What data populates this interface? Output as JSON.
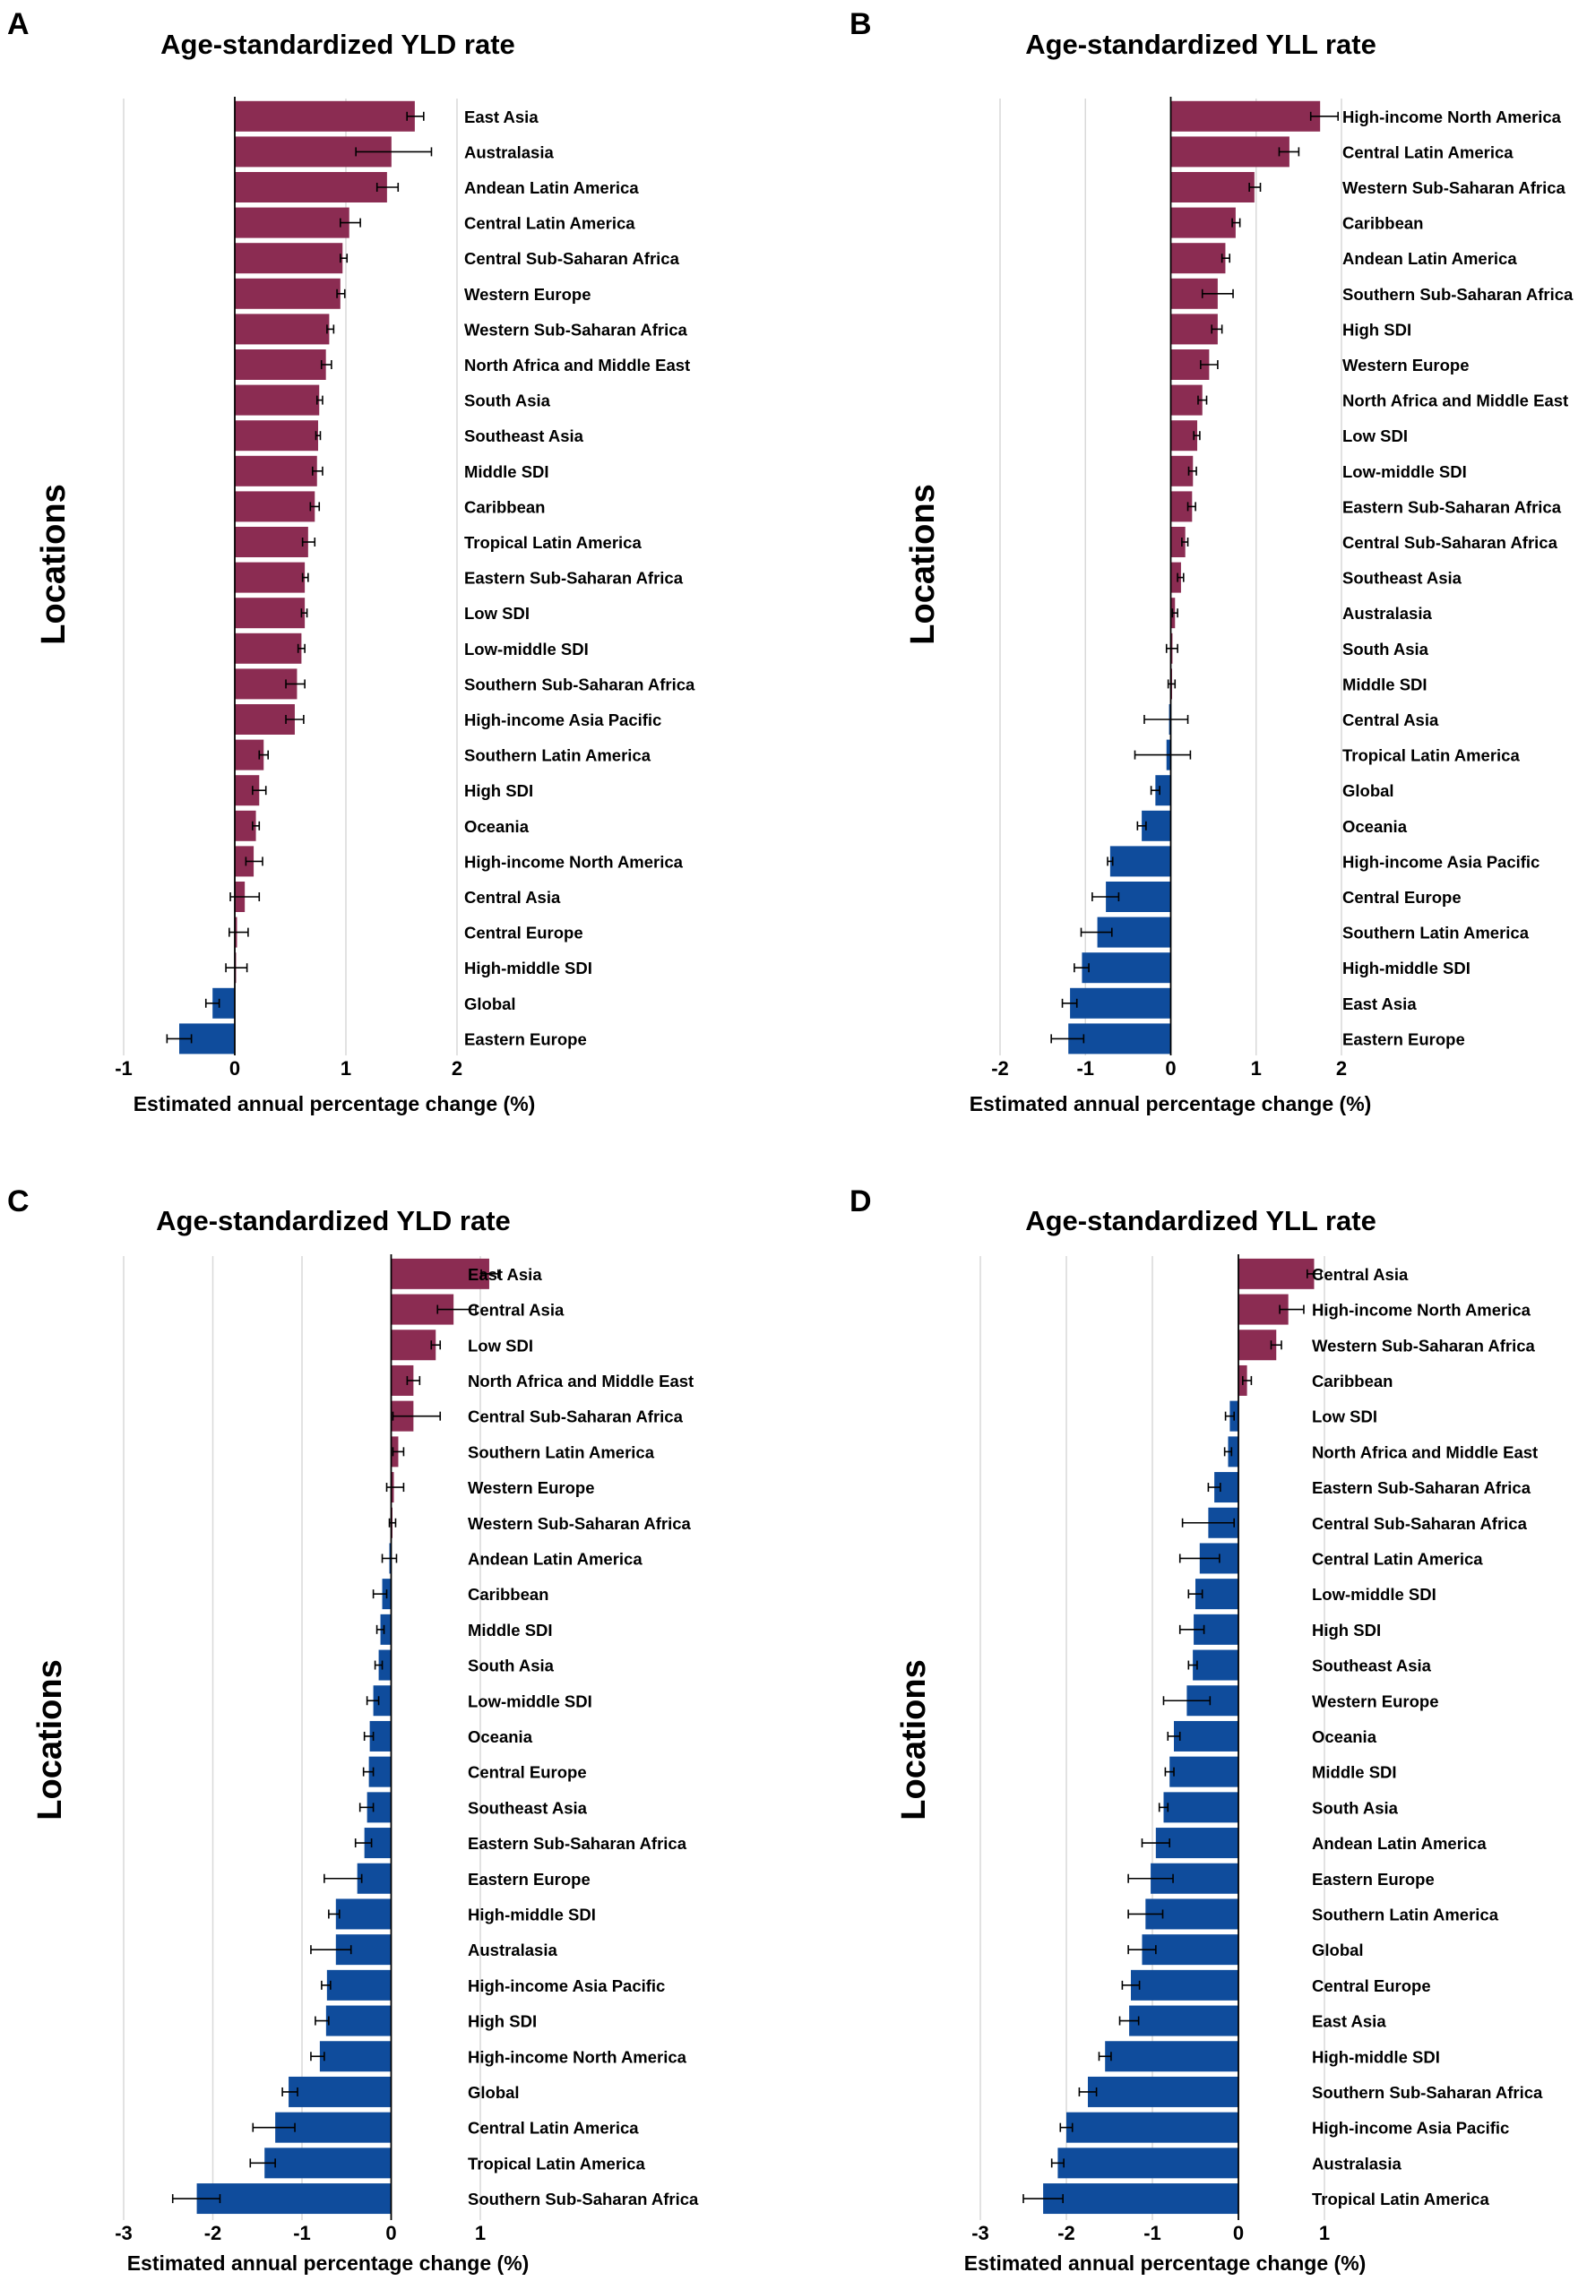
{
  "chart_data": [
    {
      "panel": "A",
      "type": "bar",
      "orientation": "horizontal",
      "title": "Age-standardized YLD rate",
      "xlabel": "Estimated annual percentage change (%)",
      "ylabel": "Locations",
      "xlim": [
        -1,
        2
      ],
      "xticks": [
        "-1",
        "0",
        "1",
        "2"
      ],
      "colors": {
        "positive": "#8b2c52",
        "negative": "#0f4c9c"
      },
      "categories": [
        "East Asia",
        "Australasia",
        "Andean Latin America",
        "Central Latin America",
        "Central Sub-Saharan Africa",
        "Western Europe",
        "Western Sub-Saharan Africa",
        "North Africa and Middle East",
        "South Asia",
        "Southeast Asia",
        "Middle SDI",
        "Caribbean",
        "Tropical Latin America",
        "Eastern Sub-Saharan Africa",
        "Low SDI",
        "Low-middle SDI",
        "Southern Sub-Saharan Africa",
        "High-income Asia Pacific",
        "Southern Latin America",
        "High SDI",
        "Oceania",
        "High-income North America",
        "Central Asia",
        "Central Europe",
        "High-middle SDI",
        "Global",
        "Eastern Europe"
      ],
      "values": [
        1.62,
        1.41,
        1.37,
        1.03,
        0.97,
        0.95,
        0.85,
        0.82,
        0.76,
        0.75,
        0.74,
        0.72,
        0.66,
        0.63,
        0.63,
        0.6,
        0.56,
        0.54,
        0.26,
        0.22,
        0.19,
        0.17,
        0.09,
        0.02,
        0.01,
        -0.2,
        -0.5
      ],
      "ci_low": [
        1.55,
        1.09,
        1.28,
        0.95,
        0.95,
        0.92,
        0.83,
        0.78,
        0.74,
        0.73,
        0.7,
        0.68,
        0.61,
        0.61,
        0.6,
        0.57,
        0.46,
        0.46,
        0.22,
        0.16,
        0.16,
        0.1,
        -0.04,
        -0.05,
        -0.08,
        -0.26,
        -0.61
      ],
      "ci_high": [
        1.7,
        1.77,
        1.47,
        1.13,
        1.01,
        0.99,
        0.89,
        0.87,
        0.79,
        0.77,
        0.79,
        0.76,
        0.72,
        0.66,
        0.65,
        0.63,
        0.63,
        0.62,
        0.3,
        0.28,
        0.22,
        0.25,
        0.22,
        0.12,
        0.11,
        -0.14,
        -0.39
      ]
    },
    {
      "panel": "B",
      "type": "bar",
      "orientation": "horizontal",
      "title": "Age-standardized YLL rate",
      "xlabel": "Estimated annual percentage change (%)",
      "ylabel": "Locations",
      "xlim": [
        -2,
        2
      ],
      "xticks": [
        "-2",
        "-1",
        "0",
        "1",
        "2"
      ],
      "colors": {
        "positive": "#8b2c52",
        "negative": "#0f4c9c"
      },
      "categories": [
        "High-income North America",
        "Central Latin America",
        "Western Sub-Saharan Africa",
        "Caribbean",
        "Andean Latin America",
        "Southern Sub-Saharan Africa",
        "High SDI",
        "Western Europe",
        "North Africa and Middle East",
        "Low SDI",
        "Low-middle SDI",
        "Eastern Sub-Saharan Africa",
        "Central Sub-Saharan Africa",
        "Southeast Asia",
        "Australasia",
        "South Asia",
        "Middle SDI",
        "Central Asia",
        "Tropical Latin America",
        "Global",
        "Oceania",
        "High-income Asia Pacific",
        "Central Europe",
        "Southern Latin America",
        "High-middle SDI",
        "East Asia",
        "Eastern Europe"
      ],
      "values": [
        1.75,
        1.39,
        0.98,
        0.76,
        0.64,
        0.55,
        0.55,
        0.45,
        0.37,
        0.31,
        0.26,
        0.25,
        0.17,
        0.12,
        0.05,
        0.02,
        0.01,
        -0.02,
        -0.05,
        -0.18,
        -0.34,
        -0.71,
        -0.76,
        -0.86,
        -1.04,
        -1.18,
        -1.2
      ],
      "ci_low": [
        1.64,
        1.27,
        0.92,
        0.72,
        0.6,
        0.37,
        0.48,
        0.35,
        0.32,
        0.27,
        0.21,
        0.2,
        0.13,
        0.08,
        0.02,
        -0.05,
        -0.03,
        -0.31,
        -0.42,
        -0.23,
        -0.39,
        -0.74,
        -0.92,
        -1.05,
        -1.13,
        -1.27,
        -1.4
      ],
      "ci_high": [
        1.96,
        1.5,
        1.05,
        0.81,
        0.69,
        0.73,
        0.6,
        0.55,
        0.42,
        0.34,
        0.3,
        0.29,
        0.2,
        0.15,
        0.08,
        0.08,
        0.05,
        0.2,
        0.23,
        -0.13,
        -0.29,
        -0.68,
        -0.61,
        -0.69,
        -0.96,
        -1.1,
        -1.02
      ]
    },
    {
      "panel": "C",
      "type": "bar",
      "orientation": "horizontal",
      "title": "Age-standardized YLD rate",
      "xlabel": "Estimated annual percentage change (%)",
      "ylabel": "Locations",
      "xlim": [
        -3,
        1
      ],
      "xticks": [
        "-3",
        "-2",
        "-1",
        "0",
        "1"
      ],
      "colors": {
        "positive": "#8b2c52",
        "negative": "#0f4c9c"
      },
      "categories": [
        "East Asia",
        "Central Asia",
        "Low SDI",
        "North Africa and Middle East",
        "Central Sub-Saharan Africa",
        "Southern Latin America",
        "Western Europe",
        "Western Sub-Saharan Africa",
        "Andean Latin America",
        "Caribbean",
        "Middle SDI",
        "South Asia",
        "Low-middle SDI",
        "Oceania",
        "Central Europe",
        "Southeast Asia",
        "Eastern Sub-Saharan Africa",
        "Eastern Europe",
        "High-middle SDI",
        "Australasia",
        "High-income Asia Pacific",
        "High SDI",
        "High-income North America",
        "Global",
        "Central Latin America",
        "Tropical Latin America",
        "Southern Sub-Saharan Africa"
      ],
      "values": [
        1.1,
        0.7,
        0.5,
        0.25,
        0.25,
        0.08,
        0.03,
        0.01,
        -0.02,
        -0.1,
        -0.12,
        -0.14,
        -0.2,
        -0.24,
        -0.25,
        -0.27,
        -0.3,
        -0.38,
        -0.62,
        -0.62,
        -0.72,
        -0.73,
        -0.8,
        -1.15,
        -1.3,
        -1.42,
        -2.18
      ],
      "ci_low": [
        1.01,
        0.52,
        0.45,
        0.18,
        0.02,
        0.02,
        -0.05,
        -0.02,
        -0.1,
        -0.2,
        -0.16,
        -0.18,
        -0.27,
        -0.3,
        -0.31,
        -0.35,
        -0.4,
        -0.75,
        -0.7,
        -0.9,
        -0.78,
        -0.85,
        -0.9,
        -1.22,
        -1.55,
        -1.58,
        -2.45
      ],
      "ci_high": [
        1.2,
        0.95,
        0.55,
        0.32,
        0.55,
        0.14,
        0.14,
        0.05,
        0.06,
        -0.05,
        -0.08,
        -0.1,
        -0.14,
        -0.2,
        -0.2,
        -0.2,
        -0.22,
        -0.33,
        -0.58,
        -0.45,
        -0.68,
        -0.7,
        -0.75,
        -1.05,
        -1.08,
        -1.3,
        -1.92
      ]
    },
    {
      "panel": "D",
      "type": "bar",
      "orientation": "horizontal",
      "title": "Age-standardized YLL rate",
      "xlabel": "Estimated annual percentage change (%)",
      "ylabel": "Locations",
      "xlim": [
        -3,
        1
      ],
      "xticks": [
        "-3",
        "-2",
        "-1",
        "0",
        "1"
      ],
      "colors": {
        "positive": "#8b2c52",
        "negative": "#0f4c9c"
      },
      "categories": [
        "Central Asia",
        "High-income North America",
        "Western Sub-Saharan Africa",
        "Caribbean",
        "Low SDI",
        "North Africa and Middle East",
        "Eastern Sub-Saharan Africa",
        "Central Sub-Saharan Africa",
        "Central Latin America",
        "Low-middle SDI",
        "High SDI",
        "Southeast Asia",
        "Western Europe",
        "Oceania",
        "Middle SDI",
        "South Asia",
        "Andean Latin America",
        "Eastern Europe",
        "Southern Latin America",
        "Global",
        "Central Europe",
        "East Asia",
        "High-middle SDI",
        "Southern Sub-Saharan Africa",
        "High-income Asia Pacific",
        "Australasia",
        "Tropical Latin America"
      ],
      "values": [
        0.88,
        0.58,
        0.44,
        0.1,
        -0.1,
        -0.12,
        -0.28,
        -0.35,
        -0.45,
        -0.5,
        -0.52,
        -0.53,
        -0.6,
        -0.75,
        -0.8,
        -0.87,
        -0.96,
        -1.02,
        -1.08,
        -1.12,
        -1.25,
        -1.27,
        -1.55,
        -1.75,
        -2.0,
        -2.1,
        -2.27
      ],
      "ci_low": [
        0.8,
        0.48,
        0.38,
        0.05,
        -0.15,
        -0.16,
        -0.35,
        -0.65,
        -0.68,
        -0.58,
        -0.68,
        -0.58,
        -0.87,
        -0.82,
        -0.85,
        -0.92,
        -1.12,
        -1.28,
        -1.28,
        -1.28,
        -1.35,
        -1.38,
        -1.62,
        -1.85,
        -2.07,
        -2.17,
        -2.5
      ],
      "ci_high": [
        0.96,
        0.76,
        0.5,
        0.15,
        -0.05,
        -0.08,
        -0.21,
        -0.05,
        -0.22,
        -0.42,
        -0.4,
        -0.48,
        -0.33,
        -0.68,
        -0.75,
        -0.82,
        -0.8,
        -0.76,
        -0.88,
        -0.96,
        -1.15,
        -1.16,
        -1.48,
        -1.65,
        -1.93,
        -2.03,
        -2.04
      ]
    }
  ]
}
